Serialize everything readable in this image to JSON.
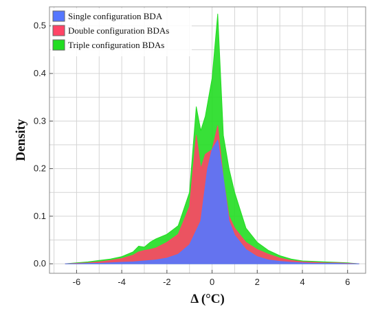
{
  "chart_data": {
    "type": "area",
    "xlabel": "Δ (°C)",
    "ylabel": "Density",
    "xlim": [
      -7.2,
      6.8
    ],
    "ylim": [
      -0.02,
      0.54
    ],
    "x_ticks": [
      -6,
      -4,
      -2,
      0,
      2,
      4,
      6
    ],
    "y_ticks": [
      0.0,
      0.1,
      0.2,
      0.3,
      0.4,
      0.5
    ],
    "x_tick_labels": [
      "-6",
      "-4",
      "-2",
      "0",
      "2",
      "4",
      "6"
    ],
    "y_tick_labels": [
      "0.0",
      "0.1",
      "0.2",
      "0.3",
      "0.4",
      "0.5"
    ],
    "grid": true,
    "legend_position": "top-left",
    "series": [
      {
        "name": "Triple configuration BDAs",
        "color": "#22dd22",
        "x": [
          -6.5,
          -6,
          -5.5,
          -5,
          -4.5,
          -4,
          -3.5,
          -3.25,
          -3,
          -2.75,
          -2.5,
          -2,
          -1.5,
          -1,
          -0.7,
          -0.5,
          -0.3,
          0,
          0.25,
          0.5,
          0.75,
          1,
          1.5,
          2,
          2.5,
          3,
          3.5,
          4,
          4.5,
          5,
          5.5,
          6,
          6.5
        ],
        "values": [
          0.0,
          0.002,
          0.004,
          0.007,
          0.01,
          0.015,
          0.025,
          0.037,
          0.035,
          0.045,
          0.052,
          0.062,
          0.08,
          0.15,
          0.33,
          0.28,
          0.31,
          0.39,
          0.525,
          0.27,
          0.2,
          0.15,
          0.075,
          0.045,
          0.028,
          0.017,
          0.01,
          0.006,
          0.005,
          0.004,
          0.003,
          0.002,
          0.0
        ]
      },
      {
        "name": "Double configuration BDAs",
        "color": "#ff4466",
        "x": [
          -6.5,
          -6,
          -5.5,
          -5,
          -4.5,
          -4,
          -3.5,
          -3.25,
          -3,
          -2.75,
          -2.5,
          -2,
          -1.5,
          -1,
          -0.7,
          -0.5,
          -0.3,
          0,
          0.25,
          0.5,
          0.75,
          1,
          1.5,
          2,
          2.5,
          3,
          3.5,
          4,
          4.5,
          5,
          5.5,
          6,
          6.5
        ],
        "values": [
          0.0,
          0.001,
          0.002,
          0.004,
          0.007,
          0.011,
          0.018,
          0.025,
          0.028,
          0.03,
          0.033,
          0.045,
          0.062,
          0.12,
          0.27,
          0.2,
          0.23,
          0.24,
          0.29,
          0.18,
          0.1,
          0.075,
          0.045,
          0.03,
          0.02,
          0.012,
          0.007,
          0.004,
          0.003,
          0.002,
          0.002,
          0.001,
          0.0
        ]
      },
      {
        "name": "Single configuration BDA",
        "color": "#5577ff",
        "x": [
          -6.5,
          -6,
          -5.5,
          -5,
          -4.5,
          -4,
          -3.5,
          -3,
          -2.5,
          -2,
          -1.5,
          -1,
          -0.5,
          -0.2,
          0,
          0.25,
          0.5,
          0.75,
          1,
          1.5,
          2,
          2.5,
          3,
          3.5,
          4,
          4.5,
          5,
          5.5,
          6,
          6.5
        ],
        "values": [
          0.0,
          0.0,
          0.001,
          0.001,
          0.002,
          0.003,
          0.004,
          0.006,
          0.008,
          0.012,
          0.02,
          0.04,
          0.09,
          0.2,
          0.24,
          0.26,
          0.18,
          0.09,
          0.06,
          0.03,
          0.015,
          0.008,
          0.005,
          0.003,
          0.002,
          0.001,
          0.001,
          0.001,
          0.0,
          0.0
        ]
      }
    ],
    "legend": [
      {
        "label": "Single configuration BDA",
        "color": "#5577ff"
      },
      {
        "label": "Double configuration BDAs",
        "color": "#ff4466"
      },
      {
        "label": "Triple configuration BDAs",
        "color": "#22dd22"
      }
    ]
  }
}
